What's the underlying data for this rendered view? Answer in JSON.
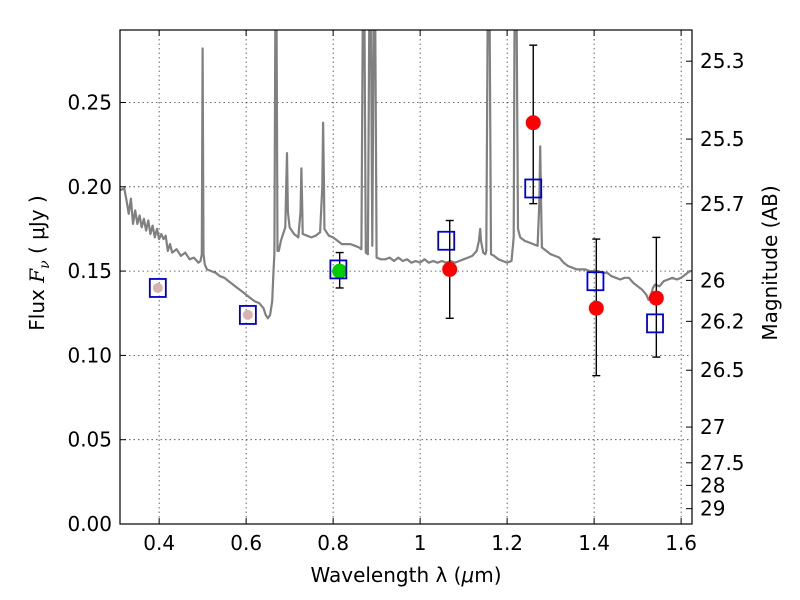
{
  "chart_data": {
    "type": "scatter",
    "xlabel_prefix": "Wavelength  λ (",
    "xlabel_unit": "μ",
    "xlabel_suffix": "m)",
    "ylabel_prefix": "Flux  ",
    "ylabel_symbol": "F",
    "ylabel_sub": "ν",
    "ylabel_suffix": "  ( μJy )",
    "y2label": "Magnitude (AB)",
    "xlim": [
      0.31,
      1.625
    ],
    "ylim": [
      0.0,
      0.293
    ],
    "grid": true,
    "x_ticks": [
      0.4,
      0.6,
      0.8,
      1.0,
      1.2,
      1.4,
      1.6
    ],
    "x_tick_labels": [
      "0.4",
      "0.6",
      "0.8",
      "1",
      "1.2",
      "1.4",
      "1.6"
    ],
    "y_ticks": [
      0.0,
      0.05,
      0.1,
      0.15,
      0.2,
      0.25
    ],
    "y_tick_labels": [
      "0.00",
      "0.05",
      "0.10",
      "0.15",
      "0.20",
      "0.25"
    ],
    "y2_ticks": [
      {
        "label": "25.3",
        "flux": 0.2745
      },
      {
        "label": "25.5",
        "flux": 0.2283
      },
      {
        "label": "25.7",
        "flux": 0.1899
      },
      {
        "label": "26",
        "flux": 0.1445
      },
      {
        "label": "26.2",
        "flux": 0.1202
      },
      {
        "label": "26.5",
        "flux": 0.0912
      },
      {
        "label": "27",
        "flux": 0.0575
      },
      {
        "label": "27.5",
        "flux": 0.0363
      },
      {
        "label": "28",
        "flux": 0.0229
      },
      {
        "label": "29",
        "flux": 0.0091
      }
    ],
    "series": [
      {
        "name": "model SED",
        "kind": "line",
        "color": "#808080",
        "points": [
          [
            0.31,
            0.198
          ],
          [
            0.32,
            0.199
          ],
          [
            0.325,
            0.192
          ],
          [
            0.33,
            0.184
          ],
          [
            0.335,
            0.193
          ],
          [
            0.34,
            0.178
          ],
          [
            0.345,
            0.186
          ],
          [
            0.35,
            0.178
          ],
          [
            0.355,
            0.183
          ],
          [
            0.36,
            0.176
          ],
          [
            0.365,
            0.181
          ],
          [
            0.37,
            0.174
          ],
          [
            0.375,
            0.18
          ],
          [
            0.38,
            0.172
          ],
          [
            0.385,
            0.177
          ],
          [
            0.39,
            0.17
          ],
          [
            0.395,
            0.175
          ],
          [
            0.4,
            0.169
          ],
          [
            0.405,
            0.172
          ],
          [
            0.41,
            0.169
          ],
          [
            0.415,
            0.171
          ],
          [
            0.42,
            0.162
          ],
          [
            0.425,
            0.166
          ],
          [
            0.43,
            0.161
          ],
          [
            0.44,
            0.163
          ],
          [
            0.45,
            0.159
          ],
          [
            0.46,
            0.161
          ],
          [
            0.47,
            0.157
          ],
          [
            0.48,
            0.158
          ],
          [
            0.49,
            0.155
          ],
          [
            0.495,
            0.156
          ],
          [
            0.498,
            0.16
          ],
          [
            0.5,
            0.282
          ],
          [
            0.502,
            0.16
          ],
          [
            0.505,
            0.154
          ],
          [
            0.51,
            0.151
          ],
          [
            0.52,
            0.15
          ],
          [
            0.53,
            0.149
          ],
          [
            0.54,
            0.147
          ],
          [
            0.55,
            0.146
          ],
          [
            0.56,
            0.144
          ],
          [
            0.57,
            0.142
          ],
          [
            0.58,
            0.14
          ],
          [
            0.59,
            0.138
          ],
          [
            0.6,
            0.136
          ],
          [
            0.61,
            0.134
          ],
          [
            0.62,
            0.132
          ],
          [
            0.63,
            0.131
          ],
          [
            0.64,
            0.128
          ],
          [
            0.645,
            0.124
          ],
          [
            0.65,
            0.122
          ],
          [
            0.655,
            0.124
          ],
          [
            0.66,
            0.132
          ],
          [
            0.663,
            0.15
          ],
          [
            0.665,
            0.16
          ],
          [
            0.667,
            0.295
          ],
          [
            0.67,
            0.295
          ],
          [
            0.672,
            0.162
          ],
          [
            0.675,
            0.162
          ],
          [
            0.68,
            0.168
          ],
          [
            0.685,
            0.172
          ],
          [
            0.69,
            0.176
          ],
          [
            0.692,
            0.2
          ],
          [
            0.694,
            0.22
          ],
          [
            0.696,
            0.185
          ],
          [
            0.7,
            0.176
          ],
          [
            0.71,
            0.172
          ],
          [
            0.72,
            0.17
          ],
          [
            0.725,
            0.185
          ],
          [
            0.727,
            0.211
          ],
          [
            0.729,
            0.186
          ],
          [
            0.73,
            0.172
          ],
          [
            0.74,
            0.171
          ],
          [
            0.75,
            0.17
          ],
          [
            0.76,
            0.171
          ],
          [
            0.77,
            0.173
          ],
          [
            0.775,
            0.2
          ],
          [
            0.777,
            0.238
          ],
          [
            0.779,
            0.2
          ],
          [
            0.78,
            0.175
          ],
          [
            0.79,
            0.171
          ],
          [
            0.8,
            0.17
          ],
          [
            0.81,
            0.168
          ],
          [
            0.82,
            0.166
          ],
          [
            0.83,
            0.166
          ],
          [
            0.84,
            0.166
          ],
          [
            0.85,
            0.165
          ],
          [
            0.86,
            0.164
          ],
          [
            0.865,
            0.163
          ],
          [
            0.868,
            0.295
          ],
          [
            0.872,
            0.295
          ],
          [
            0.875,
            0.161
          ],
          [
            0.88,
            0.16
          ],
          [
            0.883,
            0.295
          ],
          [
            0.887,
            0.295
          ],
          [
            0.89,
            0.165
          ],
          [
            0.893,
            0.295
          ],
          [
            0.897,
            0.295
          ],
          [
            0.9,
            0.158
          ],
          [
            0.91,
            0.157
          ],
          [
            0.92,
            0.157
          ],
          [
            0.93,
            0.158
          ],
          [
            0.94,
            0.156
          ],
          [
            0.95,
            0.158
          ],
          [
            0.96,
            0.156
          ],
          [
            0.97,
            0.157
          ],
          [
            0.98,
            0.155
          ],
          [
            0.99,
            0.156
          ],
          [
            1.0,
            0.155
          ],
          [
            1.01,
            0.157
          ],
          [
            1.02,
            0.155
          ],
          [
            1.03,
            0.156
          ],
          [
            1.04,
            0.155
          ],
          [
            1.05,
            0.156
          ],
          [
            1.06,
            0.155
          ],
          [
            1.07,
            0.156
          ],
          [
            1.08,
            0.155
          ],
          [
            1.09,
            0.156
          ],
          [
            1.1,
            0.157
          ],
          [
            1.11,
            0.158
          ],
          [
            1.12,
            0.159
          ],
          [
            1.13,
            0.162
          ],
          [
            1.135,
            0.168
          ],
          [
            1.138,
            0.175
          ],
          [
            1.14,
            0.168
          ],
          [
            1.145,
            0.161
          ],
          [
            1.15,
            0.16
          ],
          [
            1.152,
            0.162
          ],
          [
            1.155,
            0.295
          ],
          [
            1.16,
            0.295
          ],
          [
            1.163,
            0.16
          ],
          [
            1.17,
            0.159
          ],
          [
            1.18,
            0.157
          ],
          [
            1.19,
            0.156
          ],
          [
            1.2,
            0.155
          ],
          [
            1.21,
            0.156
          ],
          [
            1.215,
            0.17
          ],
          [
            1.217,
            0.295
          ],
          [
            1.222,
            0.295
          ],
          [
            1.225,
            0.175
          ],
          [
            1.23,
            0.17
          ],
          [
            1.24,
            0.168
          ],
          [
            1.25,
            0.167
          ],
          [
            1.26,
            0.166
          ],
          [
            1.27,
            0.165
          ],
          [
            1.274,
            0.19
          ],
          [
            1.276,
            0.224
          ],
          [
            1.278,
            0.19
          ],
          [
            1.28,
            0.164
          ],
          [
            1.29,
            0.162
          ],
          [
            1.3,
            0.16
          ],
          [
            1.31,
            0.159
          ],
          [
            1.32,
            0.158
          ],
          [
            1.33,
            0.155
          ],
          [
            1.34,
            0.153
          ],
          [
            1.35,
            0.152
          ],
          [
            1.36,
            0.151
          ],
          [
            1.37,
            0.151
          ],
          [
            1.38,
            0.151
          ],
          [
            1.39,
            0.15
          ],
          [
            1.4,
            0.15
          ],
          [
            1.41,
            0.15
          ],
          [
            1.42,
            0.149
          ],
          [
            1.43,
            0.149
          ],
          [
            1.44,
            0.147
          ],
          [
            1.45,
            0.146
          ],
          [
            1.46,
            0.145
          ],
          [
            1.47,
            0.146
          ],
          [
            1.48,
            0.146
          ],
          [
            1.49,
            0.143
          ],
          [
            1.5,
            0.141
          ],
          [
            1.51,
            0.139
          ],
          [
            1.52,
            0.136
          ],
          [
            1.525,
            0.133
          ],
          [
            1.53,
            0.135
          ],
          [
            1.535,
            0.14
          ],
          [
            1.54,
            0.142
          ],
          [
            1.55,
            0.141
          ],
          [
            1.56,
            0.144
          ],
          [
            1.57,
            0.145
          ],
          [
            1.58,
            0.146
          ],
          [
            1.59,
            0.145
          ],
          [
            1.6,
            0.146
          ],
          [
            1.61,
            0.148
          ],
          [
            1.62,
            0.15
          ],
          [
            1.625,
            0.15
          ]
        ]
      },
      {
        "name": "observed (red)",
        "kind": "points",
        "color": "#ff0000",
        "points": [
          {
            "x": 1.068,
            "y": 0.151,
            "yerr_low": 0.122,
            "yerr_high": 0.18
          },
          {
            "x": 1.26,
            "y": 0.238,
            "yerr_low": 0.19,
            "yerr_high": 0.284
          },
          {
            "x": 1.405,
            "y": 0.128,
            "yerr_low": 0.088,
            "yerr_high": 0.169
          },
          {
            "x": 1.543,
            "y": 0.134,
            "yerr_low": 0.099,
            "yerr_high": 0.17
          }
        ]
      },
      {
        "name": "observed (green)",
        "kind": "points",
        "color": "#00cc00",
        "points": [
          {
            "x": 0.815,
            "y": 0.15,
            "yerr_low": 0.14,
            "yerr_high": 0.161
          }
        ]
      },
      {
        "name": "observed (faint)",
        "kind": "points",
        "color": "#d9b3b3",
        "points": [
          {
            "x": 0.397,
            "y": 0.14,
            "yerr_low": 0.14,
            "yerr_high": 0.14
          },
          {
            "x": 0.604,
            "y": 0.124,
            "yerr_low": 0.124,
            "yerr_high": 0.124
          }
        ]
      },
      {
        "name": "model photometry",
        "kind": "squares",
        "color": "#0000cc",
        "points": [
          {
            "x": 0.397,
            "y": 0.14
          },
          {
            "x": 0.604,
            "y": 0.124
          },
          {
            "x": 0.812,
            "y": 0.151
          },
          {
            "x": 1.06,
            "y": 0.168
          },
          {
            "x": 1.26,
            "y": 0.199
          },
          {
            "x": 1.403,
            "y": 0.144
          },
          {
            "x": 1.54,
            "y": 0.119
          }
        ]
      }
    ]
  }
}
